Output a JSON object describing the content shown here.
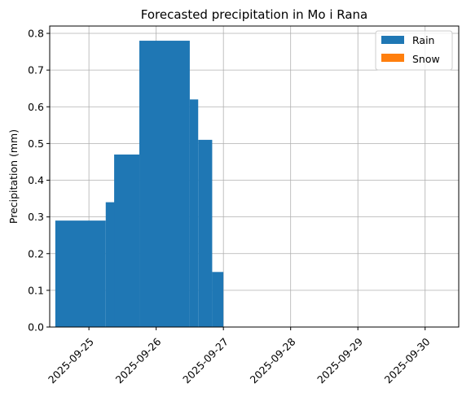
{
  "chart_data": {
    "type": "bar",
    "title": "Forecasted precipitation in Mo i Rana",
    "xlabel": "",
    "ylabel": "Precipitation (mm)",
    "xlim": [
      "2025-09-24T10:00",
      "2025-09-30T12:00"
    ],
    "ylim": [
      0,
      0.82
    ],
    "y_ticks": [
      0.0,
      0.1,
      0.2,
      0.3,
      0.4,
      0.5,
      0.6,
      0.7,
      0.8
    ],
    "y_tick_labels": [
      "0.0",
      "0.1",
      "0.2",
      "0.3",
      "0.4",
      "0.5",
      "0.6",
      "0.7",
      "0.8"
    ],
    "x_ticks": [
      "2025-09-25",
      "2025-09-26",
      "2025-09-27",
      "2025-09-28",
      "2025-09-29",
      "2025-09-30"
    ],
    "x_tick_labels": [
      "2025-09-25",
      "2025-09-26",
      "2025-09-27",
      "2025-09-28",
      "2025-09-29",
      "2025-09-30"
    ],
    "x_tick_rotation": 45,
    "grid": true,
    "legend_position": "top-right",
    "series": [
      {
        "name": "Rain",
        "color": "#1f77b4",
        "bars": [
          {
            "start": "2025-09-24T12:00",
            "end": "2025-09-25T06:00",
            "value": 0.29
          },
          {
            "start": "2025-09-25T06:00",
            "end": "2025-09-25T12:00",
            "value": 0.34
          },
          {
            "start": "2025-09-25T09:00",
            "end": "2025-09-25T18:00",
            "value": 0.47
          },
          {
            "start": "2025-09-25T18:00",
            "end": "2025-09-26T12:00",
            "value": 0.78
          },
          {
            "start": "2025-09-26T12:00",
            "end": "2025-09-26T15:00",
            "value": 0.62
          },
          {
            "start": "2025-09-26T15:00",
            "end": "2025-09-26T20:00",
            "value": 0.51
          },
          {
            "start": "2025-09-26T20:00",
            "end": "2025-09-27T00:00",
            "value": 0.15
          }
        ]
      },
      {
        "name": "Snow",
        "color": "#ff7f0e",
        "bars": []
      }
    ]
  }
}
